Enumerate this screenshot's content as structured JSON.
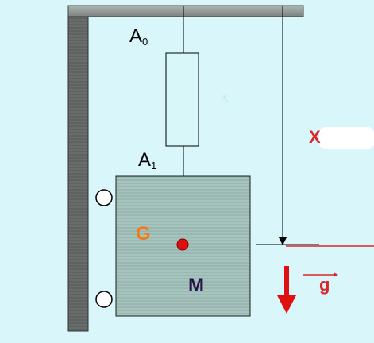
{
  "labels": {
    "a0": "A",
    "a0_sub": "0",
    "a1": "A",
    "a1_sub": "1",
    "k": "K",
    "x": "X",
    "center_of_mass": "G",
    "mass": "M",
    "gravity": "g"
  },
  "colors": {
    "background": "#d9f7fb",
    "spring": "#d7f7f8",
    "mass_block": "#9dbab3",
    "wall": "#626665",
    "red_accent": "#d8262a",
    "orange_label": "#f07b18",
    "dark_label": "#24124a"
  }
}
